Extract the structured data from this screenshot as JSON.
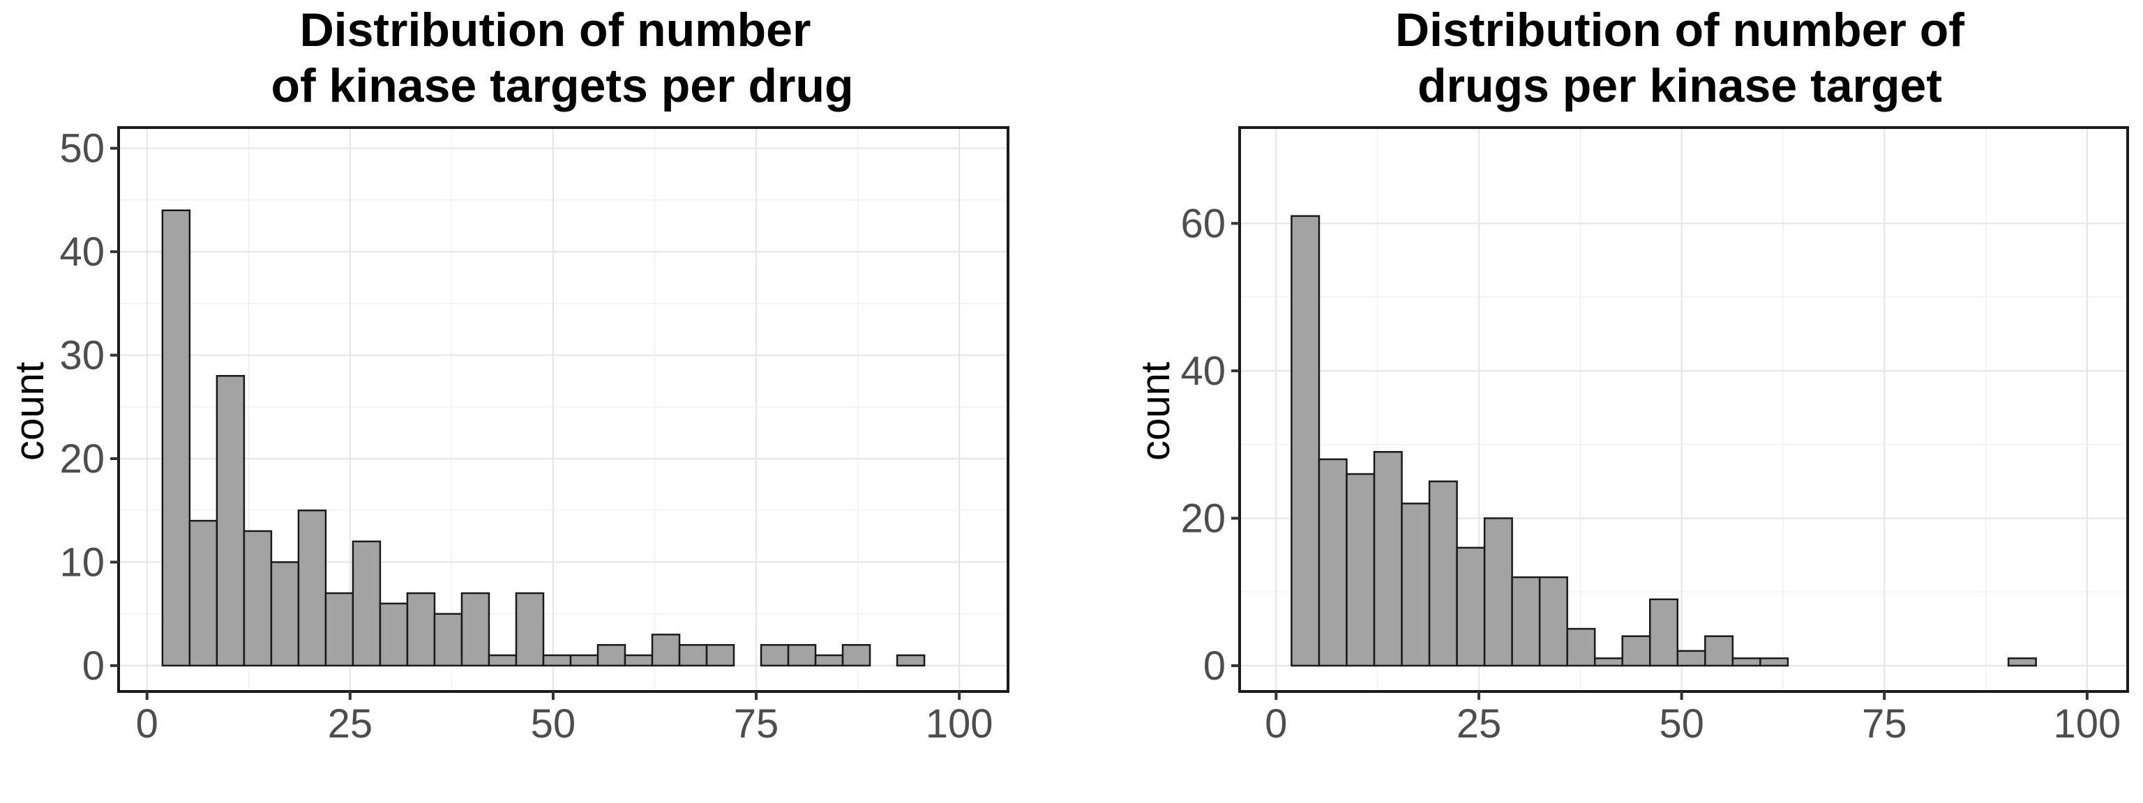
{
  "chart_data": [
    {
      "type": "bar",
      "title_lines": [
        "Distribution of number",
        "of kinase targets per drug"
      ],
      "xlabel": "",
      "ylabel": "count",
      "bins": {
        "start": 1.9,
        "width": 3.35
      },
      "values": [
        44,
        14,
        28,
        13,
        10,
        15,
        7,
        12,
        6,
        7,
        5,
        7,
        1,
        7,
        1,
        1,
        2,
        1,
        3,
        2,
        2,
        0,
        2,
        2,
        1,
        2,
        0,
        1
      ],
      "xlim": [
        -3.5,
        106
      ],
      "ylim": [
        -2.5,
        52
      ],
      "xticks": [
        0,
        25,
        50,
        75,
        100
      ],
      "yticks": [
        0,
        10,
        20,
        30,
        40,
        50
      ],
      "grid": true
    },
    {
      "type": "bar",
      "title_lines": [
        "Distribution of number of",
        "drugs per kinase target"
      ],
      "xlabel": "",
      "ylabel": "count",
      "bins": {
        "start": 1.9,
        "width": 3.4
      },
      "values": [
        61,
        28,
        26,
        29,
        22,
        25,
        16,
        20,
        12,
        12,
        5,
        1,
        4,
        9,
        2,
        4,
        1,
        1,
        0,
        0,
        0,
        0,
        0,
        0,
        0,
        0,
        1,
        0
      ],
      "xlim": [
        -4.5,
        105
      ],
      "ylim": [
        -3.5,
        73
      ],
      "xticks": [
        0,
        25,
        50,
        75,
        100
      ],
      "yticks": [
        0,
        20,
        40,
        60
      ],
      "grid": true
    }
  ]
}
